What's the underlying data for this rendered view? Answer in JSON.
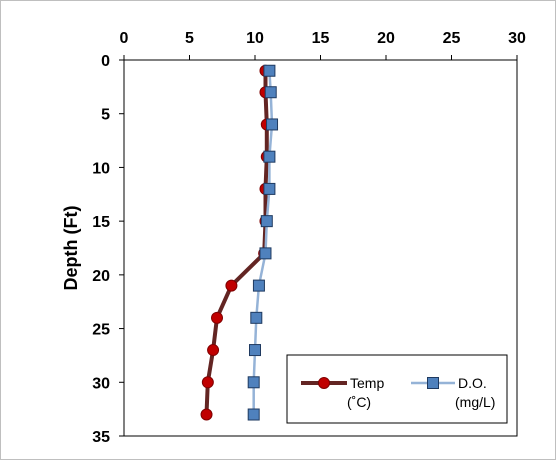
{
  "chart_data": {
    "type": "line",
    "title": "",
    "xlabel": "",
    "ylabel": "Depth (Ft)",
    "xlim": [
      0,
      30
    ],
    "ylim": [
      0,
      35
    ],
    "x_ticks": [
      0,
      5,
      10,
      15,
      20,
      25,
      30
    ],
    "y_ticks": [
      0,
      5,
      10,
      15,
      20,
      25,
      30,
      35
    ],
    "x_axis_position": "top",
    "y_axis_inverted": true,
    "grid": false,
    "legend_position": "bottom-right",
    "series": [
      {
        "name": "Temp",
        "unit": "(˚C)",
        "marker": "circle",
        "line_color": "#632523",
        "marker_fill": "#c00000",
        "points": [
          {
            "x": 10.8,
            "y": 1.0
          },
          {
            "x": 10.8,
            "y": 3.0
          },
          {
            "x": 10.9,
            "y": 6.0
          },
          {
            "x": 10.9,
            "y": 9.0
          },
          {
            "x": 10.8,
            "y": 12.0
          },
          {
            "x": 10.8,
            "y": 15.0
          },
          {
            "x": 10.7,
            "y": 18.0
          },
          {
            "x": 8.2,
            "y": 21.0
          },
          {
            "x": 7.1,
            "y": 24.0
          },
          {
            "x": 6.8,
            "y": 27.0
          },
          {
            "x": 6.4,
            "y": 30.0
          },
          {
            "x": 6.3,
            "y": 33.0
          }
        ]
      },
      {
        "name": "D.O.",
        "unit": "(mg/L)",
        "marker": "square",
        "line_color": "#95b3d7",
        "marker_fill": "#4f81bd",
        "points": [
          {
            "x": 11.1,
            "y": 1.0
          },
          {
            "x": 11.2,
            "y": 3.0
          },
          {
            "x": 11.3,
            "y": 6.0
          },
          {
            "x": 11.1,
            "y": 9.0
          },
          {
            "x": 11.1,
            "y": 12.0
          },
          {
            "x": 10.9,
            "y": 15.0
          },
          {
            "x": 10.8,
            "y": 18.0
          },
          {
            "x": 10.3,
            "y": 21.0
          },
          {
            "x": 10.1,
            "y": 24.0
          },
          {
            "x": 10.0,
            "y": 27.0
          },
          {
            "x": 9.9,
            "y": 30.0
          },
          {
            "x": 9.9,
            "y": 33.0
          }
        ]
      }
    ]
  }
}
